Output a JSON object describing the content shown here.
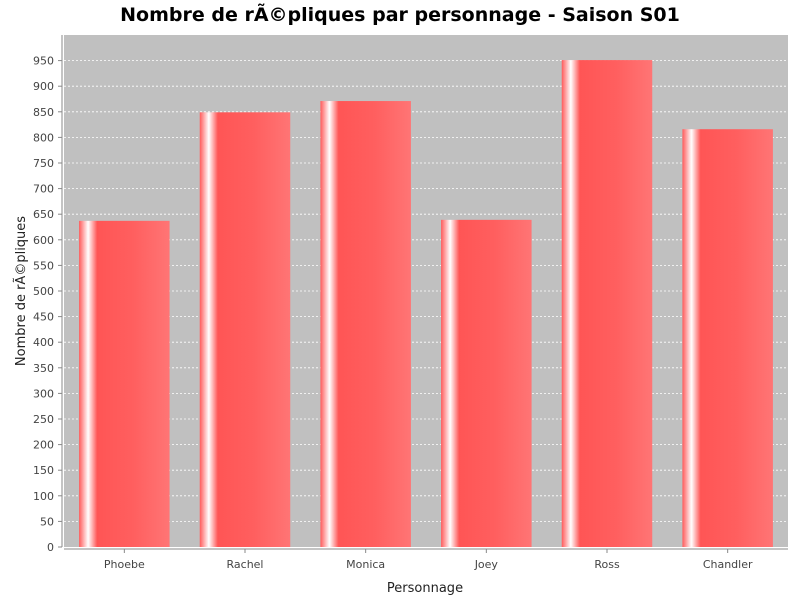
{
  "chart_data": {
    "type": "bar",
    "title": "Nombre de rÃ©pliques par personnage - Saison S01",
    "xlabel": "Personnage",
    "ylabel": "Nombre de rÃ©pliques",
    "categories": [
      "Phoebe",
      "Rachel",
      "Monica",
      "Joey",
      "Ross",
      "Chandler"
    ],
    "values": [
      637,
      849,
      871,
      639,
      951,
      816
    ],
    "ylim": [
      0,
      1000
    ],
    "yticks": [
      0,
      50,
      100,
      150,
      200,
      250,
      300,
      350,
      400,
      450,
      500,
      550,
      600,
      650,
      700,
      750,
      800,
      850,
      900,
      950
    ],
    "grid": true,
    "colors": {
      "bar": "#ff5555",
      "plot_background": "#c0c0c0",
      "gridline": "#ffffff"
    }
  }
}
